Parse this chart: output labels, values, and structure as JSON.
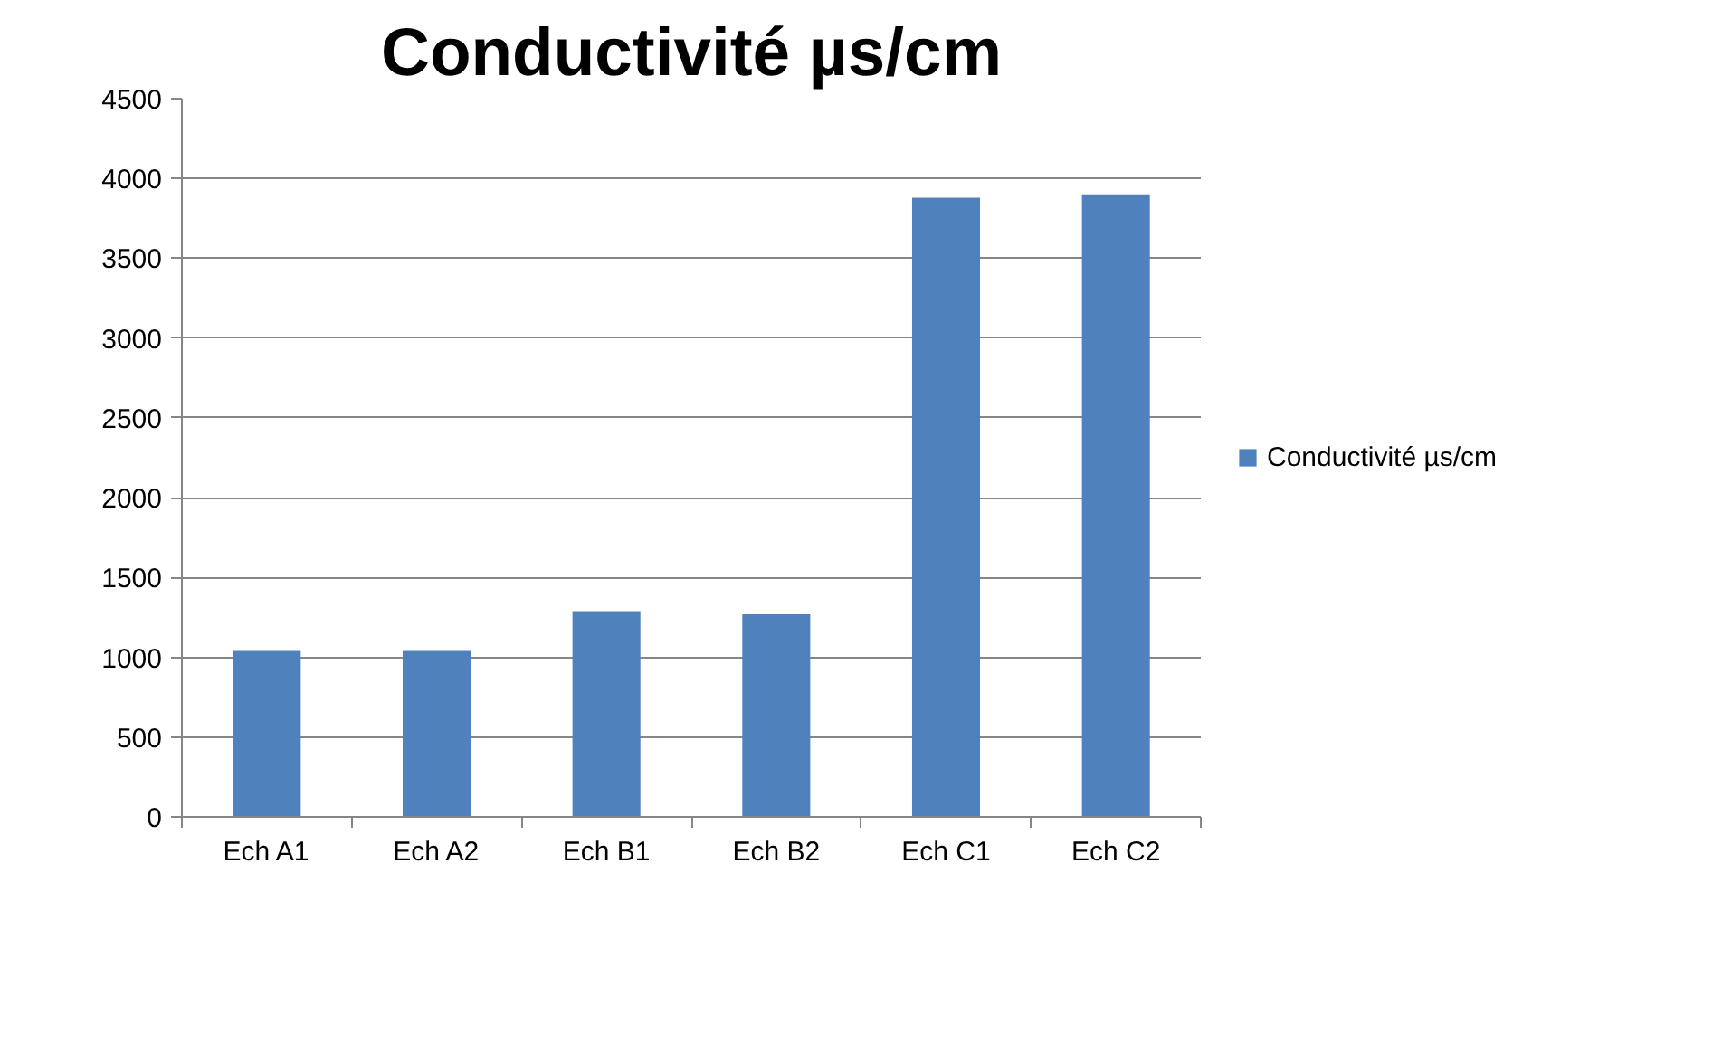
{
  "chart_data": {
    "type": "bar",
    "title": "Conductivité µs/cm",
    "categories": [
      "Ech A1",
      "Ech A2",
      "Ech B1",
      "Ech B2",
      "Ech C1",
      "Ech C2"
    ],
    "series": [
      {
        "name": "Conductivité µs/cm",
        "color": "#4f81bd",
        "values": [
          1040,
          1040,
          1290,
          1270,
          3880,
          3900
        ]
      }
    ],
    "ylim": [
      0,
      4500
    ],
    "yticks": [
      0,
      500,
      1000,
      1500,
      2000,
      2500,
      3000,
      3500,
      4000,
      4500
    ],
    "grid": "y",
    "legend": "right"
  }
}
